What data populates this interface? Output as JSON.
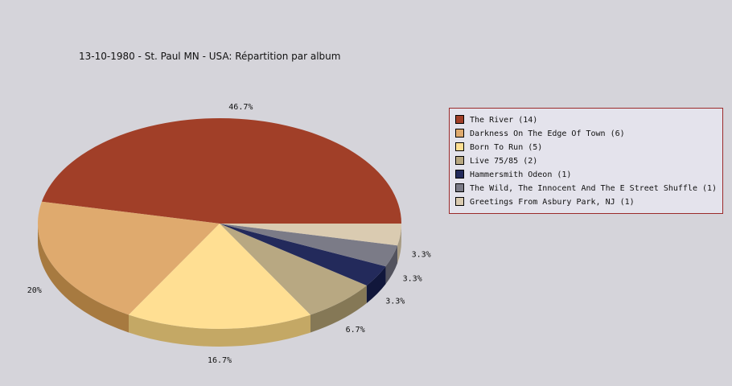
{
  "chart_data": {
    "type": "pie",
    "title": "13-10-1980 - St. Paul MN - USA:  Répartition par album",
    "legend_position": "right",
    "slices": [
      {
        "label": "The River (14)",
        "value": 14,
        "percent_label": "46.7%",
        "color": "#a13f28",
        "side_color": "#720d00"
      },
      {
        "label": "Darkness On The Edge Of Town (6)",
        "value": 6,
        "percent_label": "20%",
        "color": "#dfaa6e",
        "side_color": "#a77a40"
      },
      {
        "label": "Born To Run (5)",
        "value": 5,
        "percent_label": "16.7%",
        "color": "#ffdf93",
        "side_color": "#c4a865"
      },
      {
        "label": "Live 75/85 (2)",
        "value": 2,
        "percent_label": "6.7%",
        "color": "#b8a882",
        "side_color": "#857856"
      },
      {
        "label": "Hammersmith Odeon  (1)",
        "value": 1,
        "percent_label": "3.3%",
        "color": "#232a5b",
        "side_color": "#11173b"
      },
      {
        "label": "The Wild, The Innocent And The E Street Shuffle (1)",
        "value": 1,
        "percent_label": "3.3%",
        "color": "#7b7b87",
        "side_color": "#53535e"
      },
      {
        "label": "Greetings From Asbury Park, NJ (1)",
        "value": 1,
        "percent_label": "3.3%",
        "color": "#dacbb1",
        "side_color": "#a89c84"
      }
    ]
  }
}
